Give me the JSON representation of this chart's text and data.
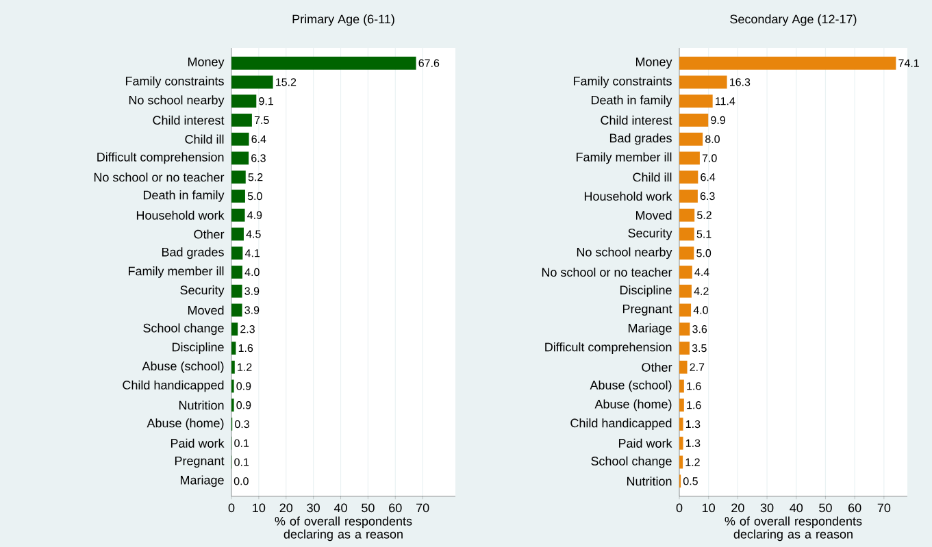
{
  "chart_data": [
    {
      "type": "bar",
      "orientation": "horizontal",
      "title": "Primary Age (6-11)",
      "xlabel": "% of overall respondents declaring as a reason",
      "categories": [
        "Money",
        "Family constraints",
        "No school nearby",
        "Child interest",
        "Child ill",
        "Difficult comprehension",
        "No school or no teacher",
        "Death in family",
        "Household work",
        "Other",
        "Bad grades",
        "Family member ill",
        "Security",
        "Moved",
        "School change",
        "Discipline",
        "Abuse (school)",
        "Child handicapped",
        "Nutrition",
        "Abuse (home)",
        "Paid work",
        "Pregnant",
        "Mariage"
      ],
      "values": [
        67.6,
        15.2,
        9.1,
        7.5,
        6.4,
        6.3,
        5.2,
        5.0,
        4.9,
        4.5,
        4.1,
        4.0,
        3.9,
        3.9,
        2.3,
        1.6,
        1.2,
        0.9,
        0.9,
        0.3,
        0.1,
        0.1,
        0.0
      ],
      "value_labels": [
        "67.6",
        "15.2",
        "9.1",
        "7.5",
        "6.4",
        "6.3",
        "5.2",
        "5.0",
        "4.9",
        "4.5",
        "4.1",
        "4.0",
        "3.9",
        "3.9",
        "2.3",
        "1.6",
        "1.2",
        "0.9",
        "0.9",
        "0.3",
        "0.1",
        "0.1",
        "0.0"
      ],
      "color": "#006400",
      "xlim": [
        0,
        82
      ],
      "xticks": [
        0,
        10,
        20,
        30,
        40,
        50,
        60,
        70
      ],
      "grid": "x"
    },
    {
      "type": "bar",
      "orientation": "horizontal",
      "title": "Secondary Age (12-17)",
      "xlabel": "% of overall respondents declaring as a reason",
      "categories": [
        "Money",
        "Family constraints",
        "Death in family",
        "Child interest",
        "Bad grades",
        "Family member ill",
        "Child ill",
        "Household work",
        "Moved",
        "Security",
        "No school nearby",
        "No school or no teacher",
        "Discipline",
        "Pregnant",
        "Mariage",
        "Difficult comprehension",
        "Other",
        "Abuse (school)",
        "Abuse (home)",
        "Child handicapped",
        "Paid work",
        "School change",
        "Nutrition"
      ],
      "values": [
        74.1,
        16.3,
        11.4,
        9.9,
        8.0,
        7.0,
        6.4,
        6.3,
        5.2,
        5.1,
        5.0,
        4.4,
        4.2,
        4.0,
        3.6,
        3.5,
        2.7,
        1.6,
        1.6,
        1.3,
        1.3,
        1.2,
        0.5
      ],
      "value_labels": [
        "74.1",
        "16.3",
        "11.4",
        "9.9",
        "8.0",
        "7.0",
        "6.4",
        "6.3",
        "5.2",
        "5.1",
        "5.0",
        "4.4",
        "4.2",
        "4.0",
        "3.6",
        "3.5",
        "2.7",
        "1.6",
        "1.6",
        "1.3",
        "1.3",
        "1.2",
        "0.5"
      ],
      "color": "#e8850c",
      "xlim": [
        0,
        78
      ],
      "xticks": [
        0,
        10,
        20,
        30,
        40,
        50,
        60,
        70
      ],
      "grid": "x"
    }
  ]
}
